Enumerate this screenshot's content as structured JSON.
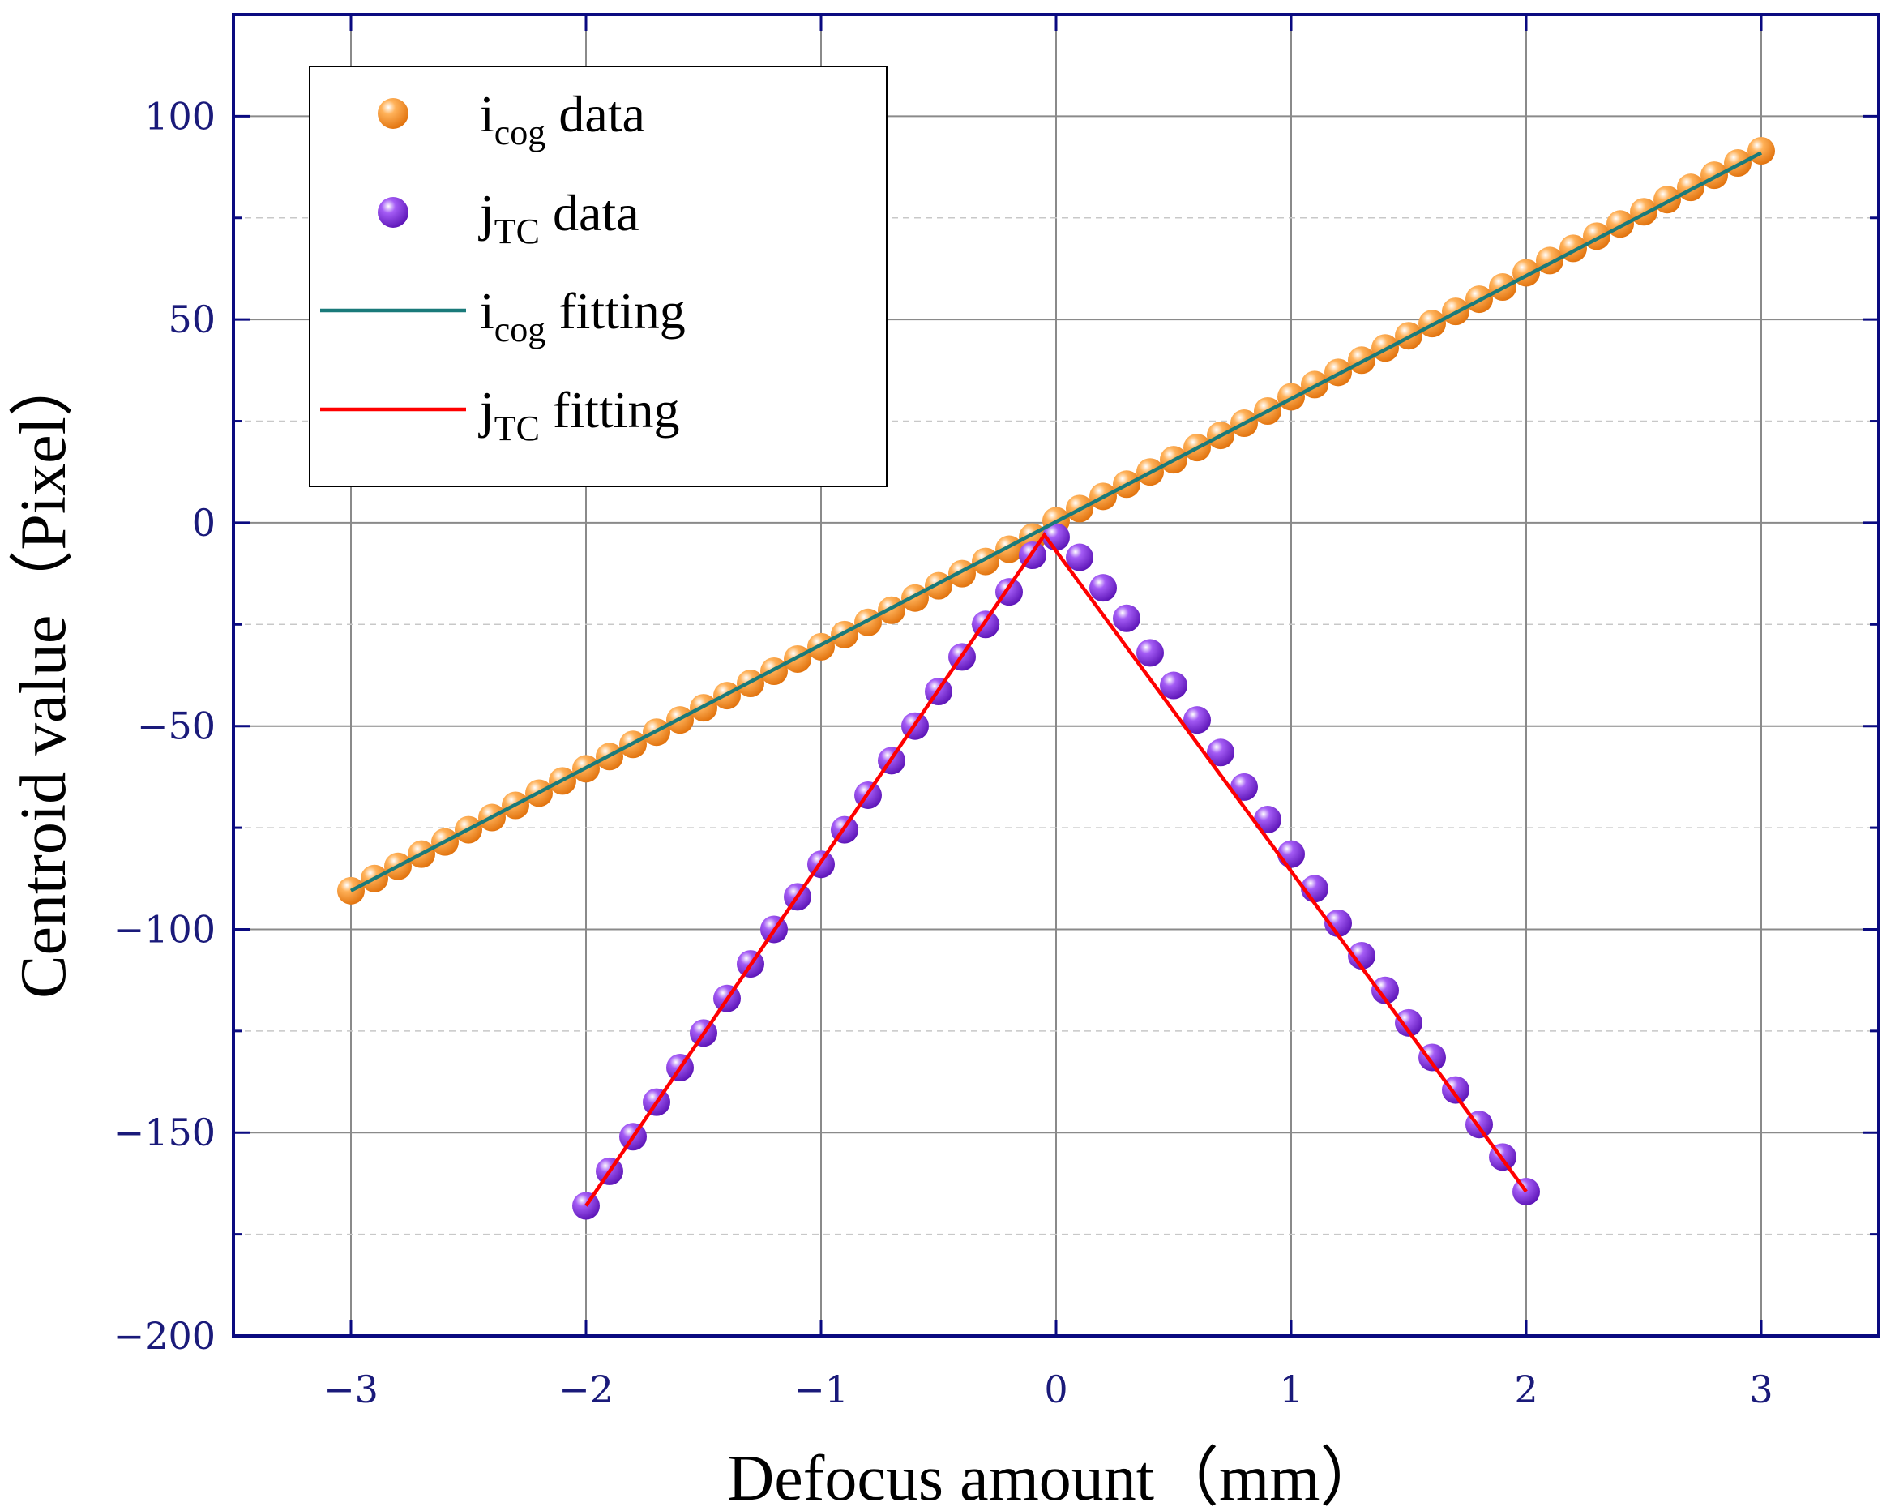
{
  "chart_data": {
    "type": "scatter",
    "xlabel": "Defocus amount（mm）",
    "ylabel": "Centroid value（Pixel）",
    "xlim": [
      -3.5,
      3.5
    ],
    "ylim": [
      -200,
      125
    ],
    "x_ticks": [
      -3,
      -2,
      -1,
      0,
      1,
      2,
      3
    ],
    "y_ticks": [
      100,
      50,
      0,
      -50,
      -100,
      -150,
      -200
    ],
    "grid": true,
    "legend_position": "top-left",
    "legend": [
      {
        "kind": "marker",
        "main": "i",
        "sub": "cog",
        "suffix": " data"
      },
      {
        "kind": "marker",
        "main": "j",
        "sub": "TC",
        "suffix": " data"
      },
      {
        "kind": "line",
        "main": "i",
        "sub": "cog",
        "suffix": "  fitting"
      },
      {
        "kind": "line",
        "main": "j",
        "sub": "TC",
        "suffix": " fitting"
      }
    ],
    "colors": {
      "icog_data": "#f7931e",
      "jtc_data": "#8a2be2",
      "icog_fit": "#1a7a7a",
      "jtc_fit": "#ff0000",
      "frame": "#0a0a80",
      "tick_label": "#1a1a7a"
    },
    "series": [
      {
        "name": "icog data",
        "kind": "scatter",
        "x": [
          -3.0,
          -2.9,
          -2.8,
          -2.7,
          -2.6,
          -2.5,
          -2.4,
          -2.3,
          -2.2,
          -2.1,
          -2.0,
          -1.9,
          -1.8,
          -1.7,
          -1.6,
          -1.5,
          -1.4,
          -1.3,
          -1.2,
          -1.1,
          -1.0,
          -0.9,
          -0.8,
          -0.7,
          -0.6,
          -0.5,
          -0.4,
          -0.3,
          -0.2,
          -0.1,
          0.0,
          0.1,
          0.2,
          0.3,
          0.4,
          0.5,
          0.6,
          0.7,
          0.8,
          0.9,
          1.0,
          1.1,
          1.2,
          1.3,
          1.4,
          1.5,
          1.6,
          1.7,
          1.8,
          1.9,
          2.0,
          2.1,
          2.2,
          2.3,
          2.4,
          2.5,
          2.6,
          2.7,
          2.8,
          2.9,
          3.0
        ],
        "y": [
          -90.5,
          -87.5,
          -84.5,
          -81.5,
          -78.5,
          -75.5,
          -72.5,
          -69.5,
          -66.5,
          -63.5,
          -60.5,
          -57.5,
          -54.5,
          -51.5,
          -48.5,
          -45.5,
          -42.5,
          -39.5,
          -36.5,
          -33.5,
          -30.5,
          -27.5,
          -24.5,
          -21.5,
          -18.5,
          -15.5,
          -12.5,
          -9.5,
          -6.5,
          -3.5,
          0.5,
          3.5,
          6.5,
          9.5,
          12.5,
          15.5,
          18.5,
          21.5,
          24.5,
          27.5,
          31.0,
          34.0,
          37.0,
          40.0,
          43.0,
          46.0,
          49.0,
          52.0,
          55.0,
          58.0,
          61.5,
          64.5,
          67.5,
          70.5,
          73.5,
          76.5,
          79.5,
          82.5,
          85.5,
          88.5,
          91.5
        ]
      },
      {
        "name": "jTC data",
        "kind": "scatter",
        "x": [
          -2.0,
          -1.9,
          -1.8,
          -1.7,
          -1.6,
          -1.5,
          -1.4,
          -1.3,
          -1.2,
          -1.1,
          -1.0,
          -0.9,
          -0.8,
          -0.7,
          -0.6,
          -0.5,
          -0.4,
          -0.3,
          -0.2,
          -0.1,
          0.0,
          0.1,
          0.2,
          0.3,
          0.4,
          0.5,
          0.6,
          0.7,
          0.8,
          0.9,
          1.0,
          1.1,
          1.2,
          1.3,
          1.4,
          1.5,
          1.6,
          1.7,
          1.8,
          1.9,
          2.0
        ],
        "y": [
          -168,
          -159.5,
          -151,
          -142.5,
          -134,
          -125.5,
          -117,
          -108.5,
          -100,
          -92,
          -84,
          -75.5,
          -67,
          -58.5,
          -50,
          -41.5,
          -33,
          -25,
          -17,
          -8,
          -3.5,
          -8.5,
          -16,
          -23.5,
          -32,
          -40,
          -48.5,
          -56.5,
          -65,
          -73,
          -81.5,
          -90,
          -98.5,
          -106.5,
          -115,
          -123,
          -131.5,
          -139.5,
          -148,
          -156,
          -164.5
        ]
      },
      {
        "name": "icog fitting",
        "kind": "line",
        "x": [
          -3.0,
          3.0
        ],
        "y": [
          -90.5,
          91.0
        ]
      },
      {
        "name": "jTC fitting",
        "kind": "line",
        "x": [
          -2.0,
          -0.05,
          2.0
        ],
        "y": [
          -168.0,
          -3.0,
          -164.5
        ]
      }
    ]
  }
}
